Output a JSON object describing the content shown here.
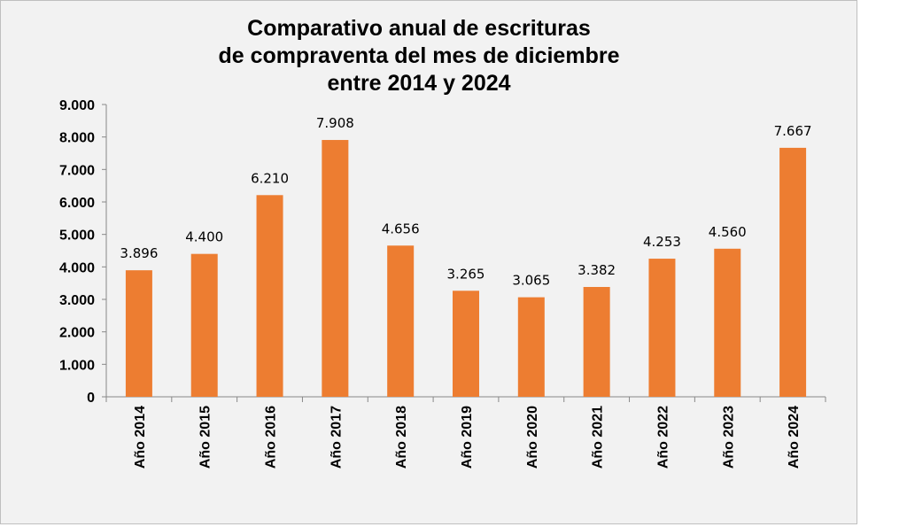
{
  "chart_data": {
    "type": "bar",
    "title_lines": [
      "Comparativo anual de escrituras",
      "de compraventa del mes de diciembre",
      "entre 2014 y 2024"
    ],
    "categories": [
      "Año 2014",
      "Año 2015",
      "Año 2016",
      "Año 2017",
      "Año 2018",
      "Año 2019",
      "Año 2020",
      "Año 2021",
      "Año 2022",
      "Año 2023",
      "Año 2024"
    ],
    "values": [
      3896,
      4400,
      6210,
      7908,
      4656,
      3265,
      3065,
      3382,
      4253,
      4560,
      7667
    ],
    "value_labels": [
      "3.896",
      "4.400",
      "6.210",
      "7.908",
      "4.656",
      "3.265",
      "3.065",
      "3.382",
      "4.253",
      "4.560",
      "7.667"
    ],
    "ylim": [
      0,
      9000
    ],
    "yticks": [
      0,
      1000,
      2000,
      3000,
      4000,
      5000,
      6000,
      7000,
      8000,
      9000
    ],
    "ytick_labels": [
      "0",
      "1.000",
      "2.000",
      "3.000",
      "4.000",
      "5.000",
      "6.000",
      "7.000",
      "8.000",
      "9.000"
    ],
    "xlabel": "",
    "ylabel": "",
    "grid": false,
    "legend": "none",
    "colors": {
      "bar": "#ed7d31",
      "background": "#f2f2f2",
      "axis": "#888888"
    }
  }
}
